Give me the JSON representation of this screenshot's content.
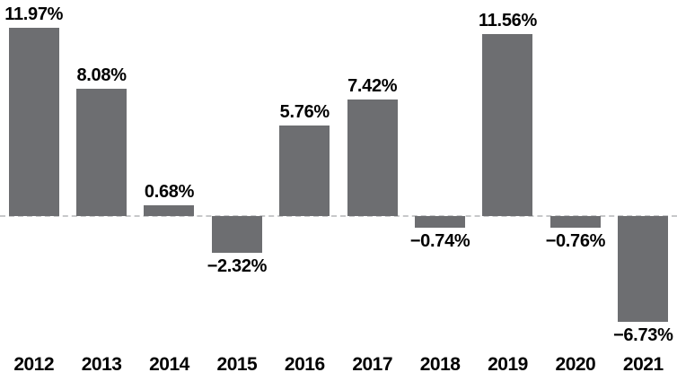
{
  "chart_data": {
    "type": "bar",
    "title": "",
    "xlabel": "",
    "ylabel": "",
    "categories": [
      "2012",
      "2013",
      "2014",
      "2015",
      "2016",
      "2017",
      "2018",
      "2019",
      "2020",
      "2021"
    ],
    "values": [
      11.97,
      8.08,
      0.68,
      -2.32,
      5.76,
      7.42,
      -0.74,
      11.56,
      -0.76,
      -6.73
    ],
    "value_labels": [
      "11.97%",
      "8.08%",
      "0.68%",
      "−2.32%",
      "5.76%",
      "7.42%",
      "−0.74%",
      "11.56%",
      "−0.76%",
      "−6.73%"
    ],
    "ylim": [
      -8,
      13
    ],
    "grid": false,
    "legend": "none",
    "baseline": {
      "value": 0,
      "style": "dashed",
      "color": "#c7c8ca"
    },
    "bar_color": "#6d6e71",
    "label_color": "#000000"
  }
}
